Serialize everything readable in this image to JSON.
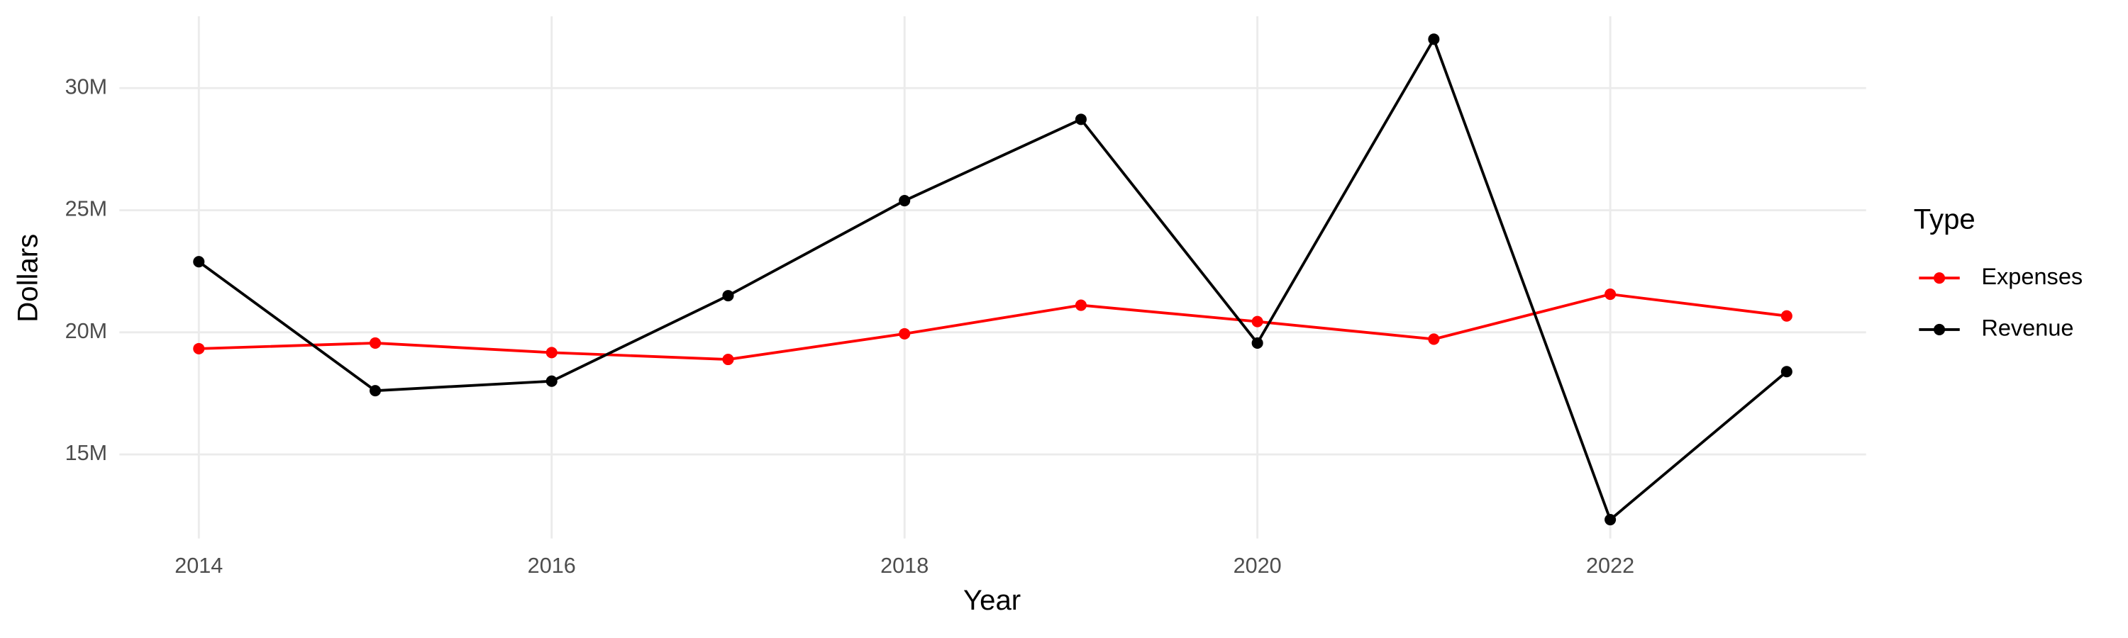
{
  "chart_data": {
    "type": "line",
    "x_label": "Year",
    "y_label": "Dollars",
    "legend_title": "Type",
    "legend_position": "right",
    "grid": true,
    "x": [
      2014,
      2015,
      2016,
      2017,
      2018,
      2019,
      2020,
      2021,
      2022,
      2023
    ],
    "series": [
      {
        "name": "Expenses",
        "color": "#ff0000",
        "values": [
          19330000,
          19560000,
          19170000,
          18890000,
          19940000,
          21110000,
          20440000,
          19720000,
          21560000,
          20670000
        ]
      },
      {
        "name": "Revenue",
        "color": "#000000",
        "values": [
          22890000,
          17610000,
          18000000,
          21500000,
          25390000,
          28720000,
          19560000,
          32000000,
          12330000,
          18390000
        ]
      }
    ],
    "xlim": [
      2013.55,
      2023.45
    ],
    "xticks": [
      2014,
      2016,
      2018,
      2020,
      2022
    ],
    "ylim": [
      11560000,
      32940000
    ],
    "yticks": [
      {
        "value": 15000000,
        "label": "15M"
      },
      {
        "value": 20000000,
        "label": "20M"
      },
      {
        "value": 25000000,
        "label": "25M"
      },
      {
        "value": 30000000,
        "label": "30M"
      }
    ]
  }
}
